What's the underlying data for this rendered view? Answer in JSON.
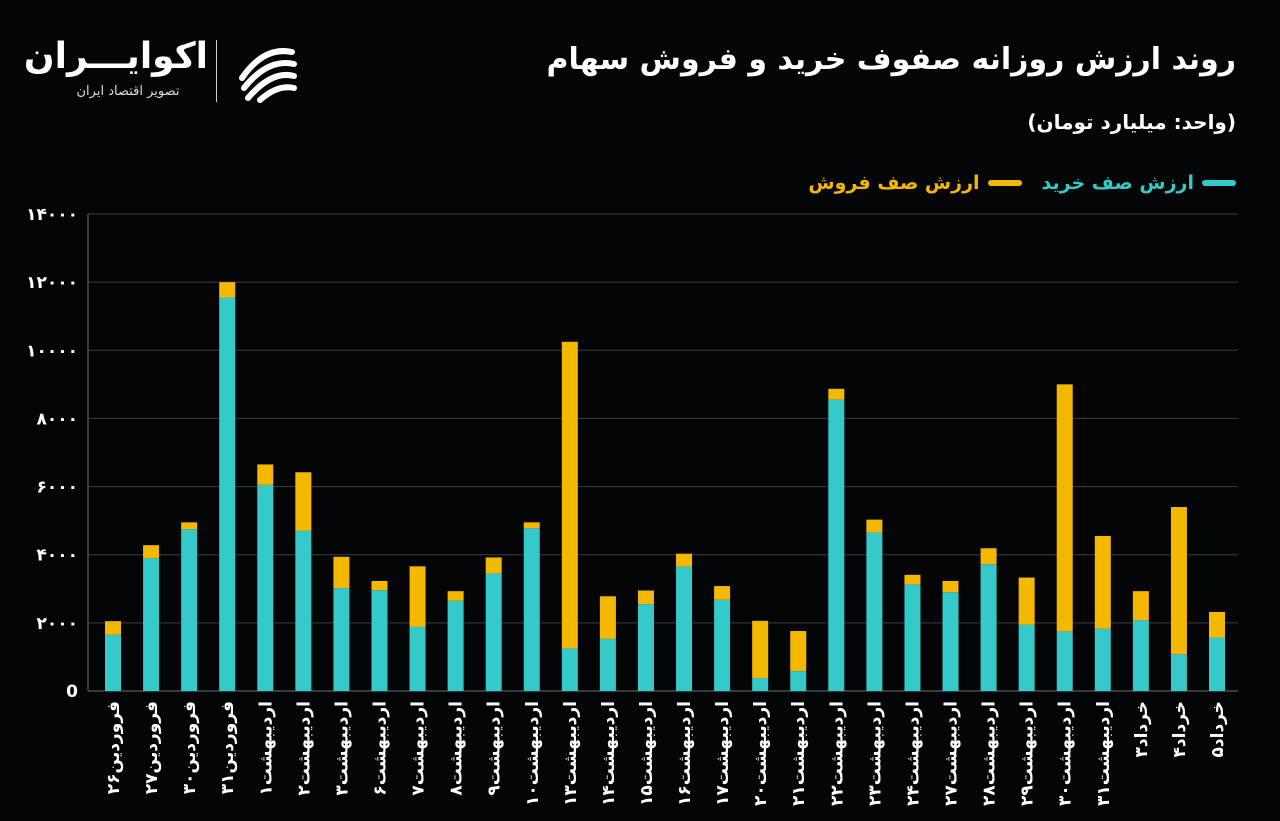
{
  "header": {
    "title": "روند ارزش روزانه صفوف خرید و فروش سهام",
    "unit": "(واحد: میلیارد تومان)"
  },
  "logo": {
    "name": "اکوایـــران",
    "tagline": "تصویر اقتصاد ایران"
  },
  "legend": {
    "buy_label": "ارزش صف خرید",
    "sell_label": "ارزش صف فروش"
  },
  "colors": {
    "background": "#030507",
    "buy": "#35c9c9",
    "sell": "#f5b800",
    "grid": "#3a3f44",
    "text": "#ffffff"
  },
  "chart_data": {
    "type": "bar",
    "stacked": true,
    "title": "روند ارزش روزانه صفوف خرید و فروش سهام",
    "ylabel": "",
    "ylim": [
      0,
      14000
    ],
    "yticks": [
      0,
      2000,
      4000,
      6000,
      8000,
      10000,
      12000,
      14000
    ],
    "ytick_labels": [
      "0",
      "۲۰۰۰",
      "۴۰۰۰",
      "۶۰۰۰",
      "۸۰۰۰",
      "۱۰۰۰۰",
      "۱۲۰۰۰",
      "۱۴۰۰۰"
    ],
    "grid": true,
    "legend_position": "top-right",
    "categories": [
      "۲۶فروردین",
      "۲۷فروردین",
      "۳۰فروردین",
      "۳۱فروردین",
      "۱اردیبهشت",
      "۲اردیبهشت",
      "۳اردیبهشت",
      "۶اردیبهشت",
      "۷اردیبهشت",
      "۸اردیبهشت",
      "۹اردیبهشت",
      "۱۰اردیبهشت",
      "۱۳اردیبهشت",
      "۱۴اردیبهشت",
      "۱۵اردیبهشت",
      "۱۶اردیبهشت",
      "۱۷اردیبهشت",
      "۲۰اردیبهشت",
      "۲۱اردیبهشت",
      "۲۲اردیبهشت",
      "۲۳اردیبهشت",
      "۲۴اردیبهشت",
      "۲۷اردیبهشت",
      "۲۸اردیبهشت",
      "۲۹اردیبهشت",
      "۳۰اردیبهشت",
      "۳۱اردیبهشت",
      "۳خرداد",
      "۴خرداد",
      "۵خرداد"
    ],
    "series": [
      {
        "name": "ارزش صف خرید",
        "color": "#35c9c9",
        "values": [
          1650,
          3900,
          4750,
          11550,
          6050,
          4700,
          3020,
          2960,
          1880,
          2650,
          3450,
          4780,
          1250,
          1530,
          2550,
          3650,
          2680,
          380,
          580,
          8550,
          4650,
          3130,
          2900,
          3720,
          1950,
          1750,
          1830,
          2080,
          1080,
          1570
        ]
      },
      {
        "name": "ارزش صف فروش",
        "color": "#f5b800",
        "values": [
          400,
          380,
          200,
          450,
          600,
          1720,
          920,
          270,
          1780,
          280,
          470,
          170,
          9000,
          1250,
          400,
          380,
          400,
          1680,
          1180,
          320,
          380,
          280,
          330,
          470,
          1380,
          7250,
          2720,
          850,
          4320,
          750
        ]
      }
    ]
  }
}
